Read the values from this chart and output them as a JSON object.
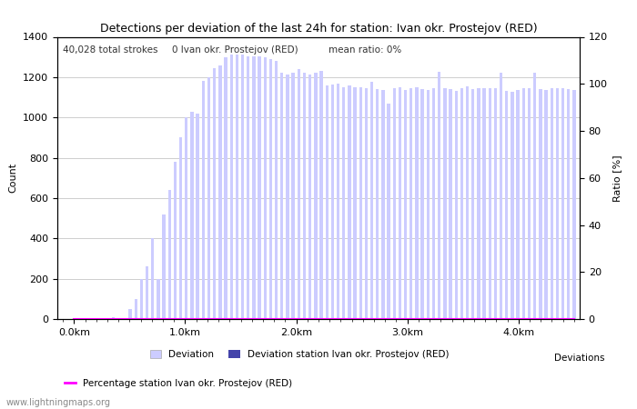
{
  "title": "Detections per deviation of the last 24h for station: Ivan okr. Prostejov (RED)",
  "annotation_total": "40,028 total strokes",
  "annotation_station": "0 Ivan okr. Prostejov (RED)",
  "annotation_ratio": "mean ratio: 0%",
  "ylabel_left": "Count",
  "ylabel_right": "Ratio [%]",
  "ylim_left": [
    0,
    1400
  ],
  "ylim_right": [
    0,
    120
  ],
  "yticks_left": [
    0,
    200,
    400,
    600,
    800,
    1000,
    1200,
    1400
  ],
  "yticks_right": [
    0,
    20,
    40,
    60,
    80,
    100,
    120
  ],
  "xtick_positions": [
    0.0,
    1.0,
    2.0,
    3.0,
    4.0
  ],
  "xtick_labels": [
    "0.0km",
    "1.0km",
    "2.0km",
    "3.0km",
    "4.0km"
  ],
  "bar_color_light": "#ccccff",
  "bar_color_dark": "#4444aa",
  "line_color": "#ff00ff",
  "watermark": "www.lightningmaps.org",
  "legend_label_light": "Deviation",
  "legend_label_dark": "Deviation station Ivan okr. Prostejov (RED)",
  "legend_label_line": "Percentage station Ivan okr. Prostejov (RED)",
  "legend_label_deviations": "Deviations",
  "bar_values": [
    0,
    0,
    0,
    0,
    0,
    0,
    0,
    10,
    0,
    0,
    50,
    100,
    200,
    260,
    400,
    200,
    520,
    640,
    780,
    900,
    1000,
    1030,
    1020,
    1180,
    1200,
    1245,
    1260,
    1300,
    1310,
    1310,
    1310,
    1305,
    1305,
    1305,
    1300,
    1290,
    1280,
    1220,
    1215,
    1220,
    1240,
    1220,
    1215,
    1220,
    1230,
    1160,
    1165,
    1170,
    1150,
    1160,
    1150,
    1150,
    1145,
    1175,
    1140,
    1135,
    1070,
    1145,
    1150,
    1135,
    1145,
    1150,
    1140,
    1135,
    1145,
    1225,
    1145,
    1140,
    1130,
    1145,
    1155,
    1140,
    1145,
    1145,
    1145,
    1145,
    1220,
    1130,
    1125,
    1135,
    1145,
    1145,
    1220,
    1140,
    1135,
    1145,
    1145,
    1145,
    1140,
    1135
  ],
  "bar_values_station": [
    0,
    0,
    0,
    0,
    0,
    0,
    0,
    0,
    0,
    0,
    0,
    0,
    0,
    0,
    0,
    0,
    0,
    0,
    0,
    0,
    0,
    0,
    0,
    0,
    0,
    0,
    0,
    0,
    0,
    0,
    0,
    0,
    0,
    0,
    0,
    0,
    0,
    0,
    0,
    0,
    0,
    0,
    0,
    0,
    0,
    0,
    0,
    0,
    0,
    0,
    0,
    0,
    0,
    0,
    0,
    0,
    0,
    0,
    0,
    0,
    0,
    0,
    0,
    0,
    0,
    0,
    0,
    0,
    0,
    0,
    0,
    0,
    0,
    0,
    0,
    0,
    0,
    0,
    0,
    0,
    0,
    0,
    0,
    0,
    0,
    0,
    0,
    0,
    0,
    0
  ],
  "ratio_values": [
    0,
    0,
    0,
    0,
    0,
    0,
    0,
    0,
    0,
    0,
    0,
    0,
    0,
    0,
    0,
    0,
    0,
    0,
    0,
    0,
    0,
    0,
    0,
    0,
    0,
    0,
    0,
    0,
    0,
    0,
    0,
    0,
    0,
    0,
    0,
    0,
    0,
    0,
    0,
    0,
    0,
    0,
    0,
    0,
    0,
    0,
    0,
    0,
    0,
    0,
    0,
    0,
    0,
    0,
    0,
    0,
    0,
    0,
    0,
    0,
    0,
    0,
    0,
    0,
    0,
    0,
    0,
    0,
    0,
    0,
    0,
    0,
    0,
    0,
    0,
    0,
    0,
    0,
    0,
    0,
    0,
    0,
    0,
    0,
    0,
    0,
    0,
    0,
    0,
    0
  ],
  "n_bars": 90,
  "x_max_km": 4.5,
  "background_color": "#ffffff",
  "grid_color": "#bbbbbb",
  "title_fontsize": 9,
  "tick_fontsize": 8,
  "label_fontsize": 8,
  "annotation_fontsize": 7.5,
  "legend_fontsize": 7.5,
  "watermark_fontsize": 7
}
